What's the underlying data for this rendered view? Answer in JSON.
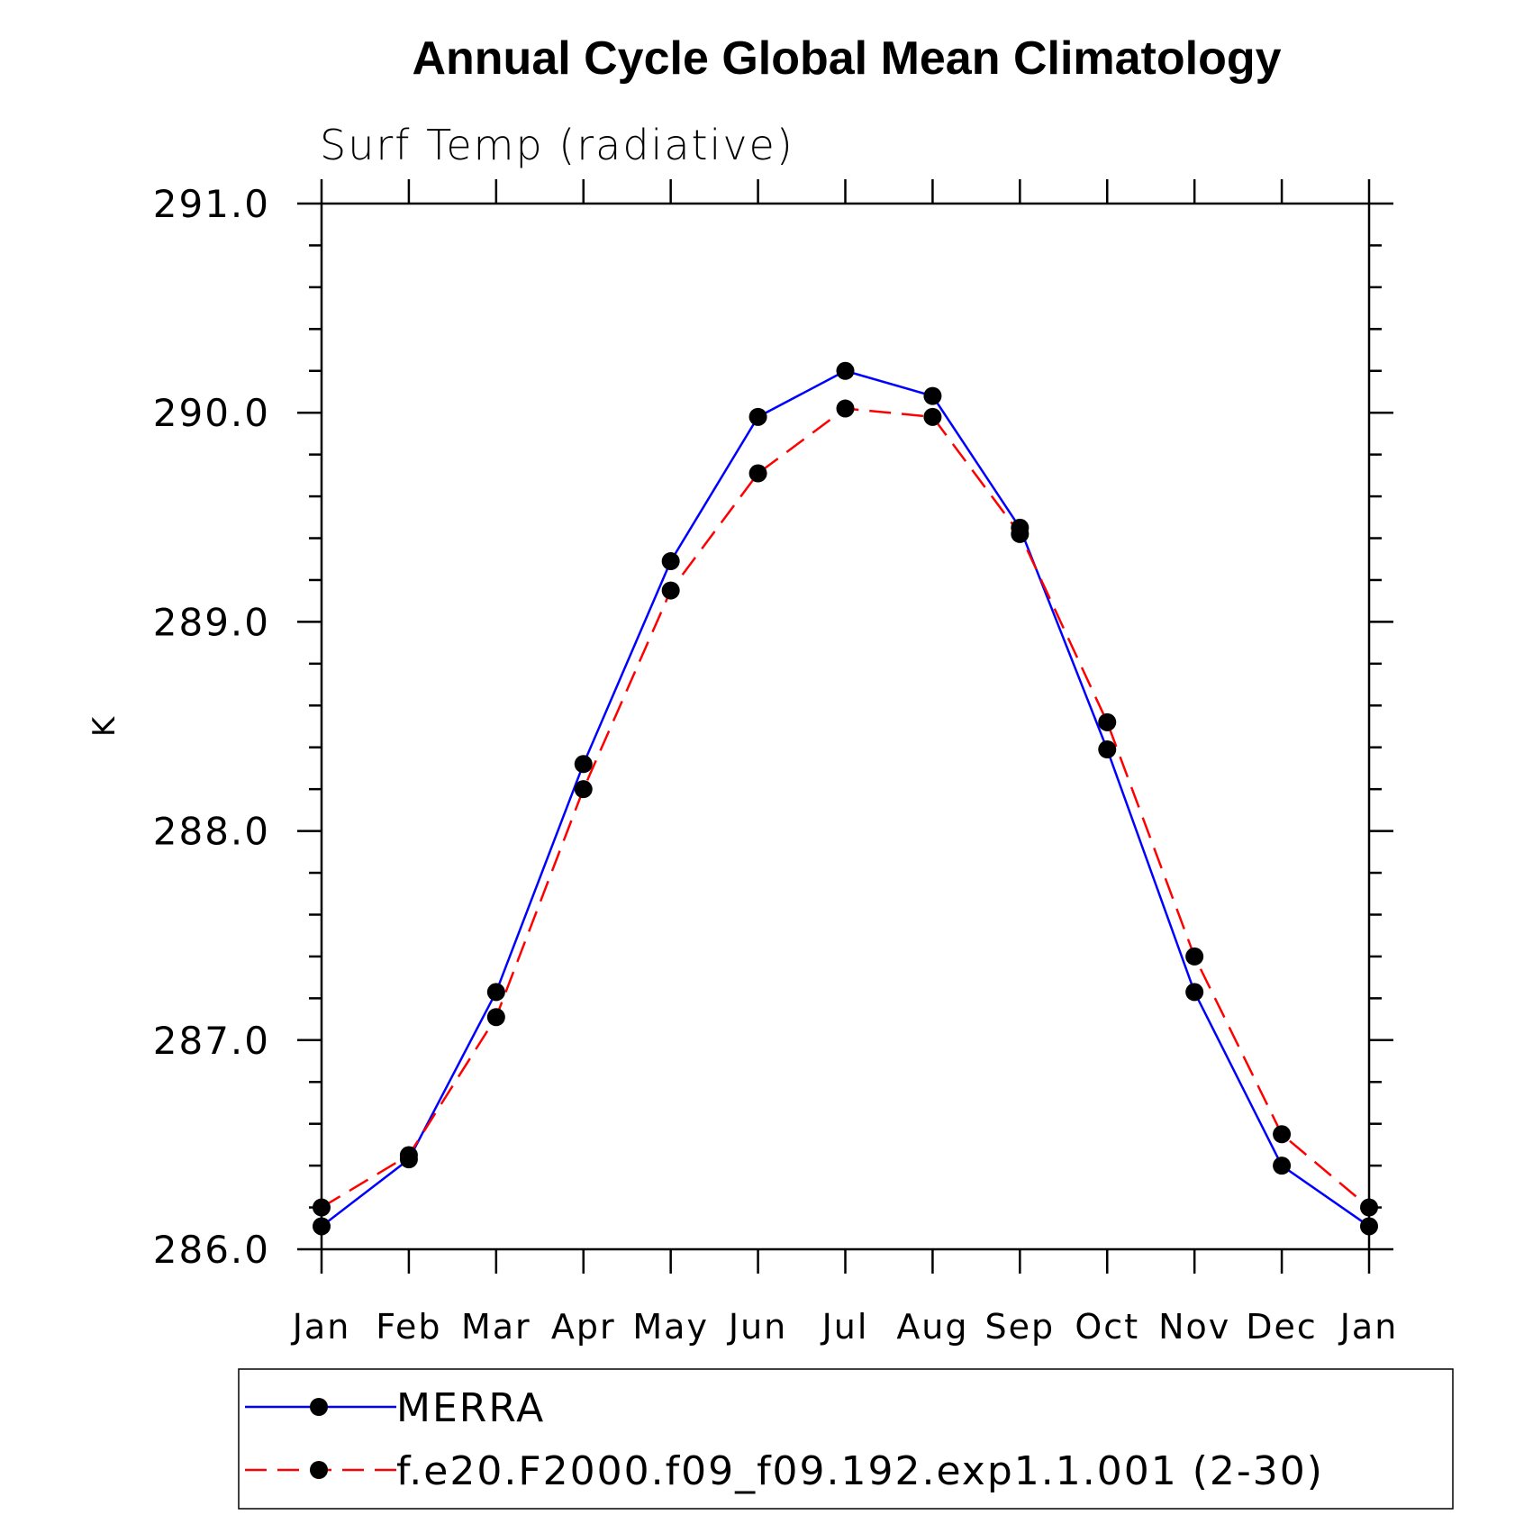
{
  "chart_data": {
    "type": "line",
    "title": "Annual Cycle Global Mean Climatology",
    "subtitle": "Surf Temp (radiative)",
    "ylabel": "K",
    "xlabel": "",
    "ylim": [
      286.0,
      291.0
    ],
    "ytick_labels": [
      "286.0",
      "287.0",
      "288.0",
      "289.0",
      "290.0",
      "291.0"
    ],
    "categories": [
      "Jan",
      "Feb",
      "Mar",
      "Apr",
      "May",
      "Jun",
      "Jul",
      "Aug",
      "Sep",
      "Oct",
      "Nov",
      "Dec",
      "Jan"
    ],
    "legend_position": "bottom",
    "grid": false,
    "series": [
      {
        "name": "MERRA",
        "color": "#0000ff",
        "dash": "solid",
        "marker": "filled-circle",
        "values": [
          286.11,
          286.43,
          287.23,
          288.32,
          289.29,
          289.98,
          290.2,
          290.08,
          289.45,
          288.39,
          287.23,
          286.4,
          286.11
        ]
      },
      {
        "name": "f.e20.F2000.f09_f09.192.exp1.1.001 (2-30)",
        "color": "#ff0000",
        "dash": "dashed",
        "marker": "filled-circle",
        "values": [
          286.2,
          286.45,
          287.11,
          288.2,
          289.15,
          289.71,
          290.02,
          289.98,
          289.42,
          288.52,
          287.4,
          286.55,
          286.2
        ]
      }
    ]
  }
}
